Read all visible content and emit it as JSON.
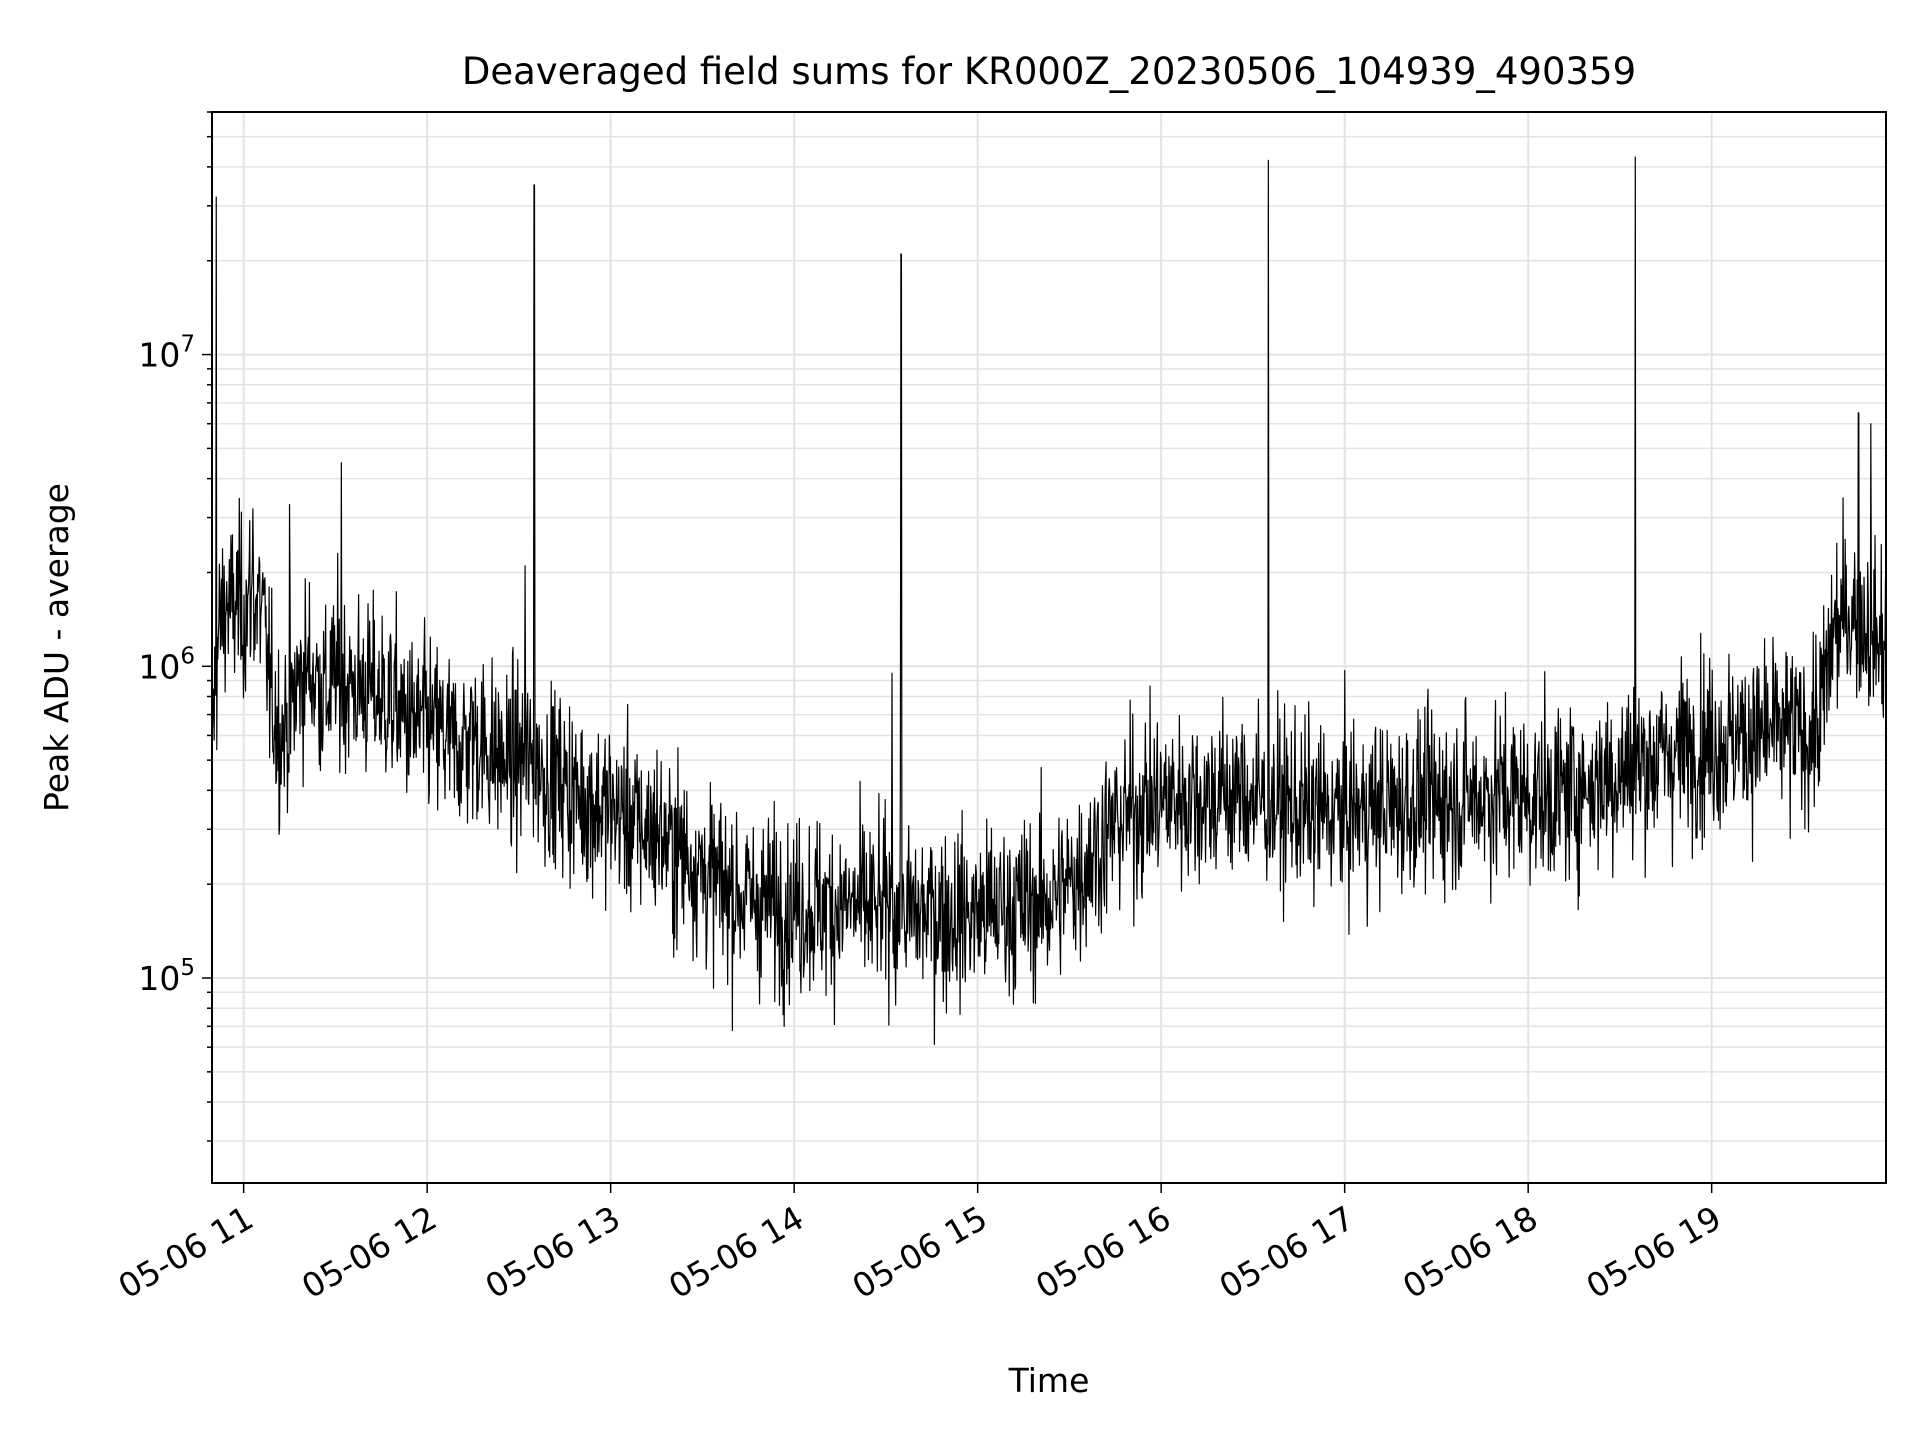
{
  "chart_data": {
    "type": "line",
    "title": "Deaveraged field sums for KR000Z_20230506_104939_490359",
    "xlabel": "Time",
    "ylabel": "Peak ADU - average",
    "yscale": "log",
    "xlim": [
      "2023-05-06T10:49:39",
      "2023-05-06T19:57:00"
    ],
    "ylim": [
      22000,
      60000000
    ],
    "grid": true,
    "line_color": "#000000",
    "x_ticks": [
      {
        "value": "2023-05-06T11:00:00",
        "label": "05-06 11"
      },
      {
        "value": "2023-05-06T12:00:00",
        "label": "05-06 12"
      },
      {
        "value": "2023-05-06T13:00:00",
        "label": "05-06 13"
      },
      {
        "value": "2023-05-06T14:00:00",
        "label": "05-06 14"
      },
      {
        "value": "2023-05-06T15:00:00",
        "label": "05-06 15"
      },
      {
        "value": "2023-05-06T16:00:00",
        "label": "05-06 16"
      },
      {
        "value": "2023-05-06T17:00:00",
        "label": "05-06 17"
      },
      {
        "value": "2023-05-06T18:00:00",
        "label": "05-06 18"
      },
      {
        "value": "2023-05-06T19:00:00",
        "label": "05-06 19"
      }
    ],
    "y_ticks": [
      {
        "value": 100000,
        "base": "10",
        "exp": "5"
      },
      {
        "value": 1000000,
        "base": "10",
        "exp": "6"
      },
      {
        "value": 10000000,
        "base": "10",
        "exp": "7"
      }
    ],
    "series": [
      {
        "x": [
          "10:50",
          "10:52",
          "10:54",
          "10:56",
          "10:58",
          "11:00",
          "11:03",
          "11:06",
          "11:09",
          "11:12",
          "11:15",
          "11:18",
          "11:21",
          "11:24",
          "11:27",
          "11:30",
          "11:33",
          "11:36",
          "11:40",
          "11:45",
          "11:50",
          "11:55",
          "12:00",
          "12:05",
          "12:10",
          "12:15",
          "12:20",
          "12:25",
          "12:30",
          "12:35",
          "12:40",
          "12:45",
          "12:50",
          "12:55",
          "13:00",
          "13:05",
          "13:10",
          "13:15",
          "13:20",
          "13:25",
          "13:30",
          "13:35",
          "13:40",
          "13:45",
          "13:50",
          "13:55",
          "14:00",
          "14:05",
          "14:10",
          "14:15",
          "14:20",
          "14:25",
          "14:30",
          "14:35",
          "14:40",
          "14:45",
          "14:50",
          "14:55",
          "15:00",
          "15:05",
          "15:10",
          "15:15",
          "15:20",
          "15:25",
          "15:30",
          "15:35",
          "15:40",
          "15:45",
          "15:50",
          "15:55",
          "16:00",
          "16:05",
          "16:10",
          "16:15",
          "16:20",
          "16:25",
          "16:30",
          "16:35",
          "16:40",
          "16:45",
          "16:50",
          "16:55",
          "17:00",
          "17:05",
          "17:10",
          "17:15",
          "17:20",
          "17:25",
          "17:30",
          "17:35",
          "17:40",
          "17:45",
          "17:50",
          "17:55",
          "18:00",
          "18:05",
          "18:10",
          "18:15",
          "18:20",
          "18:25",
          "18:30",
          "18:35",
          "18:40",
          "18:45",
          "18:50",
          "18:55",
          "19:00",
          "19:05",
          "19:10",
          "19:15",
          "19:20",
          "19:25",
          "19:30",
          "19:35",
          "19:40",
          "19:45",
          "19:50",
          "19:55"
        ],
        "y": [
          700000,
          1300000,
          1600000,
          1500000,
          1600000,
          1500000,
          1700000,
          1500000,
          800000,
          600000,
          700000,
          900000,
          1000000,
          900000,
          800000,
          950000,
          900000,
          850000,
          850000,
          800000,
          750000,
          650000,
          650000,
          600000,
          550000,
          600000,
          550000,
          500000,
          500000,
          480000,
          450000,
          420000,
          380000,
          360000,
          350000,
          330000,
          300000,
          300000,
          260000,
          250000,
          220000,
          200000,
          190000,
          180000,
          175000,
          170000,
          170000,
          170000,
          170000,
          170000,
          170000,
          165000,
          165000,
          160000,
          160000,
          165000,
          160000,
          160000,
          160000,
          165000,
          170000,
          170000,
          175000,
          180000,
          200000,
          230000,
          270000,
          310000,
          340000,
          360000,
          370000,
          380000,
          380000,
          380000,
          390000,
          390000,
          380000,
          370000,
          360000,
          350000,
          340000,
          340000,
          340000,
          345000,
          350000,
          355000,
          360000,
          365000,
          370000,
          375000,
          380000,
          385000,
          390000,
          390000,
          385000,
          380000,
          390000,
          400000,
          420000,
          440000,
          460000,
          480000,
          500000,
          520000,
          540000,
          560000,
          570000,
          580000,
          590000,
          600000,
          610000,
          620000,
          600000,
          650000,
          1300000,
          1500000,
          1400000,
          1200000
        ]
      }
    ],
    "spikes": [
      {
        "x": "10:51",
        "y": 32000000
      },
      {
        "x": "11:03",
        "y": 3200000
      },
      {
        "x": "11:15",
        "y": 3300000
      },
      {
        "x": "11:32",
        "y": 4500000
      },
      {
        "x": "12:35",
        "y": 35000000
      },
      {
        "x": "12:32",
        "y": 2100000
      },
      {
        "x": "14:35",
        "y": 21000000
      },
      {
        "x": "14:32",
        "y": 950000
      },
      {
        "x": "16:35",
        "y": 42000000
      },
      {
        "x": "18:35",
        "y": 43000000
      },
      {
        "x": "19:48",
        "y": 6500000
      },
      {
        "x": "19:52",
        "y": 6000000
      }
    ]
  }
}
